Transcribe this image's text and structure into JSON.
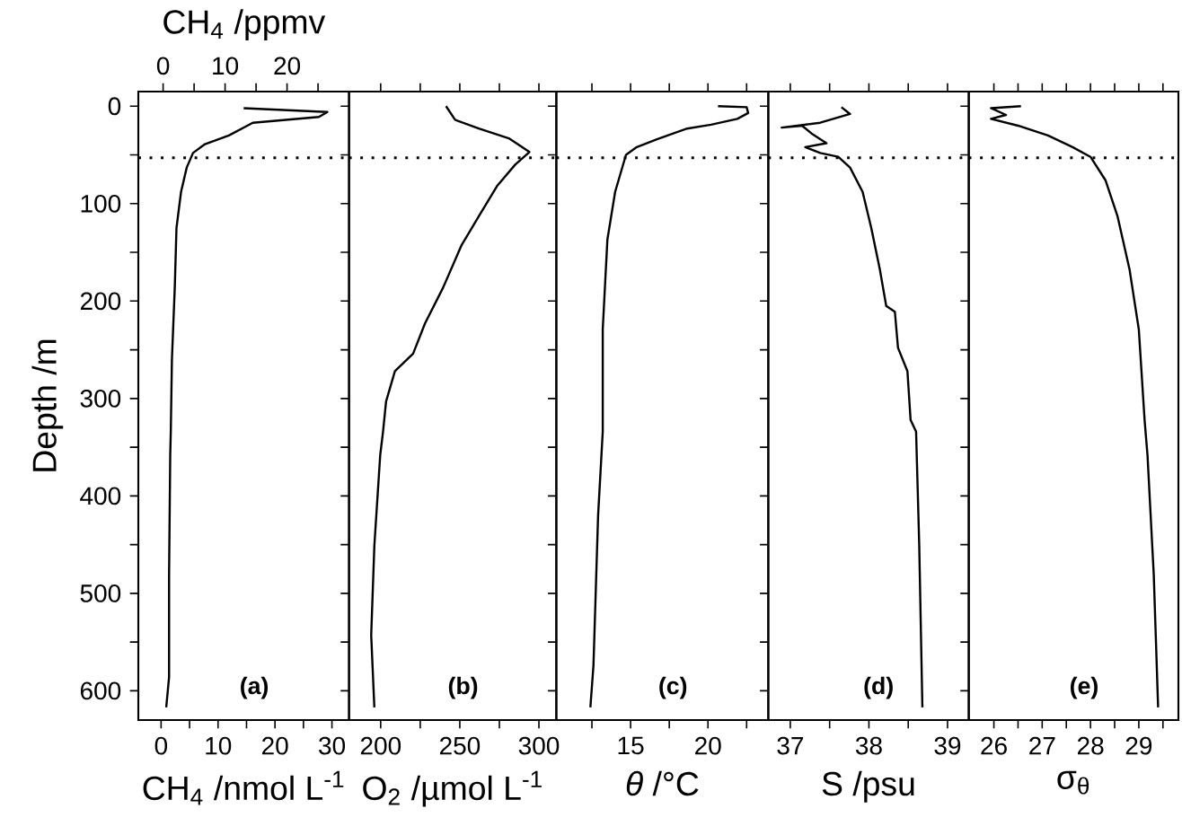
{
  "chart_data": [
    {
      "type": "line",
      "xlabel": "CH$_{4}$ /nmol L$^{-1}$",
      "ylabel": "Depth /m",
      "x2label": "CH$_{4}$ /ppmv",
      "xlim": [
        -4,
        33
      ],
      "xticks": [
        0,
        {
          "value": 5,
          "label": null
        },
        10,
        {
          "value": 15,
          "label": null
        },
        20,
        {
          "value": 25,
          "label": null
        },
        30
      ],
      "x2lim": [
        -4,
        30
      ],
      "x2ticks": [
        0,
        {
          "value": 5,
          "label": null
        },
        10,
        {
          "value": 15,
          "label": null
        },
        20,
        {
          "value": 25,
          "label": null
        }
      ],
      "ylim": [
        630,
        -15
      ],
      "yticks": [
        0,
        {
          "value": 50,
          "label": null
        },
        100,
        {
          "value": 150,
          "label": null
        },
        200,
        {
          "value": 250,
          "label": null
        },
        300,
        {
          "value": 350,
          "label": null
        },
        400,
        {
          "value": 450,
          "label": null
        },
        500,
        {
          "value": 550,
          "label": null
        },
        600
      ],
      "x": [
        14.5,
        29.2,
        27.7,
        16.1,
        11.9,
        7.7,
        5.6,
        4.5,
        3.5,
        2.7,
        2.4,
        1.9,
        1.7,
        1.6,
        1.4,
        1.4,
        0.9
      ],
      "series": [
        {
          "color": "#000000",
          "values": [
            2,
            6,
            11,
            17,
            30,
            39,
            48,
            63,
            88,
            125,
            186,
            260,
            334,
            358,
            481,
            586,
            617
          ]
        }
      ],
      "ref_lines": [
        {
          "axis": "y",
          "value": 53,
          "line_style": "dotted",
          "color": "#000000"
        }
      ],
      "annotations": [
        "**(a)**"
      ]
    },
    {
      "type": "line",
      "xlabel": "O$_{2}$ /µmol L$^{-1}$",
      "xlim": [
        180,
        311
      ],
      "xticks": [
        200,
        {
          "value": 225,
          "label": null
        },
        250,
        {
          "value": 275,
          "label": null
        },
        300
      ],
      "ylim": [
        630,
        -15
      ],
      "yticks": [
        0,
        {
          "value": 50,
          "label": null
        },
        100,
        {
          "value": 150,
          "label": null
        },
        200,
        {
          "value": 250,
          "label": null
        },
        300,
        {
          "value": 350,
          "label": null
        },
        400,
        {
          "value": 450,
          "label": null
        },
        500,
        {
          "value": 550,
          "label": null
        },
        600
      ],
      "tick_labels": "x",
      "x": [
        241.3,
        247,
        262,
        281,
        294,
        285,
        273.5,
        262,
        251,
        239.5,
        228,
        220.5,
        209,
        203.4,
        201.5,
        199.7,
        196,
        194,
        196
      ],
      "series": [
        {
          "color": "#000000",
          "values": [
            0,
            14,
            23,
            33,
            47,
            60,
            82,
            113,
            143,
            186,
            223,
            254,
            272,
            303,
            334,
            358,
            451,
            543,
            617
          ]
        }
      ],
      "ref_lines": [
        {
          "axis": "y",
          "value": 53,
          "line_style": "dotted",
          "color": "#000000"
        }
      ],
      "annotations": [
        "**(b)**"
      ]
    },
    {
      "type": "line",
      "xlabel": "*θ* /°C",
      "xlim": [
        10.2,
        23.9
      ],
      "xticks": [
        {
          "value": 12.5,
          "label": null
        },
        15,
        {
          "value": 17.5,
          "label": null
        },
        20,
        {
          "value": 22.5,
          "label": null
        }
      ],
      "ylim": [
        630,
        -15
      ],
      "yticks": [
        0,
        {
          "value": 50,
          "label": null
        },
        100,
        {
          "value": 150,
          "label": null
        },
        200,
        {
          "value": 250,
          "label": null
        },
        300,
        {
          "value": 350,
          "label": null
        },
        400,
        {
          "value": 450,
          "label": null
        },
        500,
        {
          "value": 550,
          "label": null
        },
        600
      ],
      "tick_labels": "x",
      "x": [
        20.65,
        22.5,
        22.6,
        21.9,
        20.2,
        18.65,
        16.7,
        15.4,
        14.7,
        14.0,
        13.5,
        13.2,
        13.2,
        12.9,
        12.6,
        12.4
      ],
      "series": [
        {
          "color": "#000000",
          "values": [
            0,
            1,
            7,
            13,
            19,
            23,
            34,
            42,
            50,
            88,
            137,
            229,
            334,
            420,
            574,
            617
          ]
        }
      ],
      "ref_lines": [
        {
          "axis": "y",
          "value": 53,
          "line_style": "dotted",
          "color": "#000000"
        }
      ],
      "annotations": [
        "**(c)**"
      ]
    },
    {
      "type": "line",
      "xlabel": "S /psu",
      "xlim": [
        36.72,
        39.27
      ],
      "xticks": [
        37,
        {
          "value": 37.5,
          "label": null
        },
        38,
        {
          "value": 38.5,
          "label": null
        },
        39
      ],
      "ylim": [
        630,
        -15
      ],
      "yticks": [
        0,
        {
          "value": 50,
          "label": null
        },
        100,
        {
          "value": 150,
          "label": null
        },
        200,
        {
          "value": 250,
          "label": null
        },
        300,
        {
          "value": 350,
          "label": null
        },
        400,
        {
          "value": 450,
          "label": null
        },
        500,
        {
          "value": 550,
          "label": null
        },
        600
      ],
      "tick_labels": "x",
      "x": [
        37.65,
        37.76,
        37.38,
        36.89,
        37.15,
        37.27,
        37.46,
        37.19,
        37.38,
        37.61,
        37.76,
        37.92,
        38.03,
        38.14,
        38.22,
        38.33,
        38.37,
        38.49,
        38.53,
        38.6,
        38.64,
        38.68
      ],
      "series": [
        {
          "color": "#000000",
          "values": [
            1,
            8,
            17,
            22,
            20,
            28,
            38,
            42,
            48,
            52,
            63,
            88,
            125,
            168,
            205,
            211,
            248,
            272,
            322,
            334,
            451,
            617
          ]
        }
      ],
      "ref_lines": [
        {
          "axis": "y",
          "value": 53,
          "line_style": "dotted",
          "color": "#000000"
        }
      ],
      "annotations": [
        "**(d)**"
      ]
    },
    {
      "type": "line",
      "xlabel": "σ$_{θ}$",
      "xlim": [
        25.48,
        29.82
      ],
      "xticks": [
        26,
        {
          "value": 26.5,
          "label": null
        },
        27,
        {
          "value": 27.5,
          "label": null
        },
        28,
        {
          "value": 28.5,
          "label": null
        },
        29,
        {
          "value": 29.5,
          "label": null
        }
      ],
      "ylim": [
        630,
        -15
      ],
      "yticks": [
        0,
        {
          "value": 50,
          "label": null
        },
        100,
        {
          "value": 150,
          "label": null
        },
        200,
        {
          "value": 250,
          "label": null
        },
        300,
        {
          "value": 350,
          "label": null
        },
        400,
        {
          "value": 450,
          "label": null
        },
        500,
        {
          "value": 550,
          "label": null
        },
        600
      ],
      "tick_labels": "x",
      "x": [
        26.56,
        25.94,
        26.25,
        25.94,
        26.5,
        27.12,
        27.63,
        28.0,
        28.31,
        28.56,
        28.81,
        29.0,
        29.12,
        29.18,
        29.31,
        29.4
      ],
      "series": [
        {
          "color": "#000000",
          "values": [
            0,
            2,
            9,
            13,
            20,
            30,
            42,
            52,
            76,
            113,
            168,
            229,
            322,
            358,
            481,
            617
          ]
        }
      ],
      "ref_lines": [
        {
          "axis": "y",
          "value": 53,
          "line_style": "dotted",
          "color": "#000000"
        }
      ],
      "annotations": [
        "**(e)**"
      ]
    }
  ]
}
